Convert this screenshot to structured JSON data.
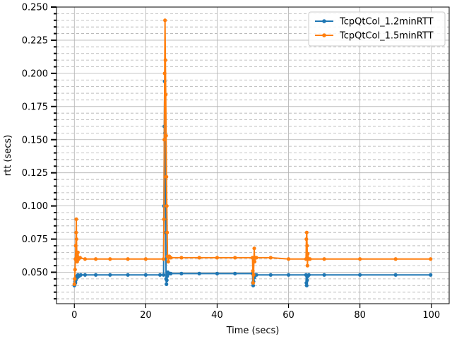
{
  "chart_data": {
    "type": "line",
    "title": "",
    "xlabel": "Time (secs)",
    "ylabel": "rtt (secs)",
    "xlim": [
      -5,
      105
    ],
    "ylim": [
      0.0263,
      0.25
    ],
    "x_ticks": [
      0,
      20,
      40,
      60,
      80,
      100
    ],
    "x_tick_labels": [
      "0",
      "20",
      "40",
      "60",
      "80",
      "100"
    ],
    "y_ticks": [
      0.05,
      0.075,
      0.1,
      0.125,
      0.15,
      0.175,
      0.2,
      0.225,
      0.25
    ],
    "y_tick_labels": [
      "0.050",
      "0.075",
      "0.100",
      "0.125",
      "0.150",
      "0.175",
      "0.200",
      "0.225",
      "0.250"
    ],
    "y_minor_step": 0.005,
    "grid": {
      "major": true,
      "minor_y": true
    },
    "legend_position": "top-right",
    "series": [
      {
        "name": "TcpQtCol_1.2minRTT",
        "color": "#1f77b4",
        "points": [
          [
            0.0,
            0.04
          ],
          [
            0.1,
            0.041
          ],
          [
            0.2,
            0.043
          ],
          [
            0.3,
            0.042
          ],
          [
            0.4,
            0.044
          ],
          [
            0.5,
            0.045
          ],
          [
            0.6,
            0.046
          ],
          [
            0.7,
            0.047
          ],
          [
            0.8,
            0.046
          ],
          [
            1.0,
            0.048
          ],
          [
            1.3,
            0.047
          ],
          [
            1.8,
            0.048
          ],
          [
            3,
            0.048
          ],
          [
            6,
            0.048
          ],
          [
            10,
            0.048
          ],
          [
            15,
            0.048
          ],
          [
            20,
            0.048
          ],
          [
            24,
            0.048
          ],
          [
            25.0,
            0.048
          ],
          [
            25.1,
            0.1
          ],
          [
            25.2,
            0.16
          ],
          [
            25.3,
            0.194
          ],
          [
            25.4,
            0.155
          ],
          [
            25.5,
            0.12
          ],
          [
            25.6,
            0.08
          ],
          [
            25.7,
            0.045
          ],
          [
            25.8,
            0.041
          ],
          [
            25.9,
            0.044
          ],
          [
            26.0,
            0.047
          ],
          [
            26.2,
            0.05
          ],
          [
            26.5,
            0.049
          ],
          [
            27,
            0.049
          ],
          [
            30,
            0.049
          ],
          [
            35,
            0.049
          ],
          [
            40,
            0.049
          ],
          [
            45,
            0.049
          ],
          [
            49.9,
            0.049
          ],
          [
            50.0,
            0.042
          ],
          [
            50.1,
            0.04
          ],
          [
            50.2,
            0.043
          ],
          [
            50.4,
            0.046
          ],
          [
            50.6,
            0.048
          ],
          [
            51,
            0.048
          ],
          [
            55,
            0.048
          ],
          [
            60,
            0.048
          ],
          [
            64.9,
            0.048
          ],
          [
            65.0,
            0.042
          ],
          [
            65.1,
            0.04
          ],
          [
            65.2,
            0.044
          ],
          [
            65.4,
            0.047
          ],
          [
            65.7,
            0.048
          ],
          [
            70,
            0.048
          ],
          [
            80,
            0.048
          ],
          [
            90,
            0.048
          ],
          [
            99.8,
            0.048
          ]
        ]
      },
      {
        "name": "TcpQtCol_1.5minRTT",
        "color": "#ff7f0e",
        "points": [
          [
            0.0,
            0.041
          ],
          [
            0.1,
            0.045
          ],
          [
            0.2,
            0.052
          ],
          [
            0.3,
            0.06
          ],
          [
            0.4,
            0.07
          ],
          [
            0.5,
            0.08
          ],
          [
            0.55,
            0.09
          ],
          [
            0.6,
            0.075
          ],
          [
            0.7,
            0.062
          ],
          [
            0.8,
            0.058
          ],
          [
            1.0,
            0.065
          ],
          [
            1.2,
            0.06
          ],
          [
            1.6,
            0.061
          ],
          [
            3,
            0.06
          ],
          [
            6,
            0.06
          ],
          [
            10,
            0.06
          ],
          [
            15,
            0.06
          ],
          [
            20,
            0.06
          ],
          [
            25.0,
            0.06
          ],
          [
            25.1,
            0.09
          ],
          [
            25.2,
            0.15
          ],
          [
            25.3,
            0.2
          ],
          [
            25.4,
            0.24
          ],
          [
            25.5,
            0.21
          ],
          [
            25.6,
            0.184
          ],
          [
            25.7,
            0.153
          ],
          [
            25.8,
            0.122
          ],
          [
            25.9,
            0.1
          ],
          [
            26.0,
            0.08
          ],
          [
            26.1,
            0.062
          ],
          [
            26.3,
            0.058
          ],
          [
            26.6,
            0.062
          ],
          [
            27,
            0.061
          ],
          [
            30,
            0.061
          ],
          [
            35,
            0.061
          ],
          [
            40,
            0.061
          ],
          [
            45,
            0.061
          ],
          [
            49.9,
            0.061
          ],
          [
            50.0,
            0.051
          ],
          [
            50.1,
            0.042
          ],
          [
            50.2,
            0.048
          ],
          [
            50.3,
            0.06
          ],
          [
            50.4,
            0.068
          ],
          [
            50.5,
            0.058
          ],
          [
            50.7,
            0.061
          ],
          [
            51,
            0.061
          ],
          [
            55,
            0.061
          ],
          [
            60,
            0.06
          ],
          [
            64.9,
            0.06
          ],
          [
            65.0,
            0.075
          ],
          [
            65.1,
            0.08
          ],
          [
            65.2,
            0.07
          ],
          [
            65.3,
            0.055
          ],
          [
            65.4,
            0.064
          ],
          [
            65.6,
            0.06
          ],
          [
            66,
            0.06
          ],
          [
            70,
            0.06
          ],
          [
            80,
            0.06
          ],
          [
            90,
            0.06
          ],
          [
            99.8,
            0.06
          ]
        ]
      }
    ]
  }
}
